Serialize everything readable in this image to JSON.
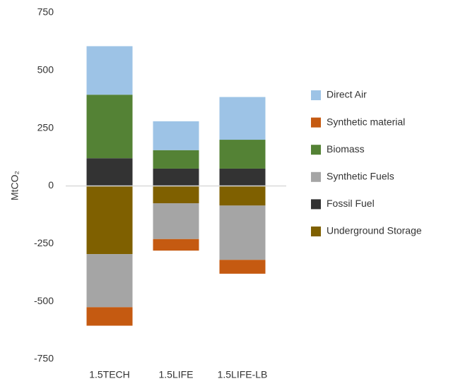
{
  "chart_data": {
    "type": "stacked_bar",
    "y_label": "MtCO₂",
    "categories": [
      "1.5TECH",
      "1.5LIFE",
      "1.5LIFE-LB"
    ],
    "series": [
      {
        "name": "Underground Storage",
        "color": "#7f6000",
        "values": [
          -295,
          -75,
          -85
        ]
      },
      {
        "name": "Fossil Fuel",
        "color": "#333333",
        "values": [
          120,
          75,
          75
        ]
      },
      {
        "name": "Synthetic Fuels",
        "color": "#a5a5a5",
        "values": [
          -230,
          -155,
          -235
        ]
      },
      {
        "name": "Biomass",
        "color": "#548235",
        "values": [
          275,
          80,
          125
        ]
      },
      {
        "name": "Synthetic material",
        "color": "#c55a11",
        "values": [
          -80,
          -50,
          -60
        ]
      },
      {
        "name": "Direct Air",
        "color": "#9dc3e6",
        "values": [
          210,
          125,
          185
        ]
      }
    ],
    "ylim": [
      -750,
      750
    ],
    "yticks": [
      -750,
      -500,
      -250,
      0,
      250,
      500,
      750
    ]
  }
}
